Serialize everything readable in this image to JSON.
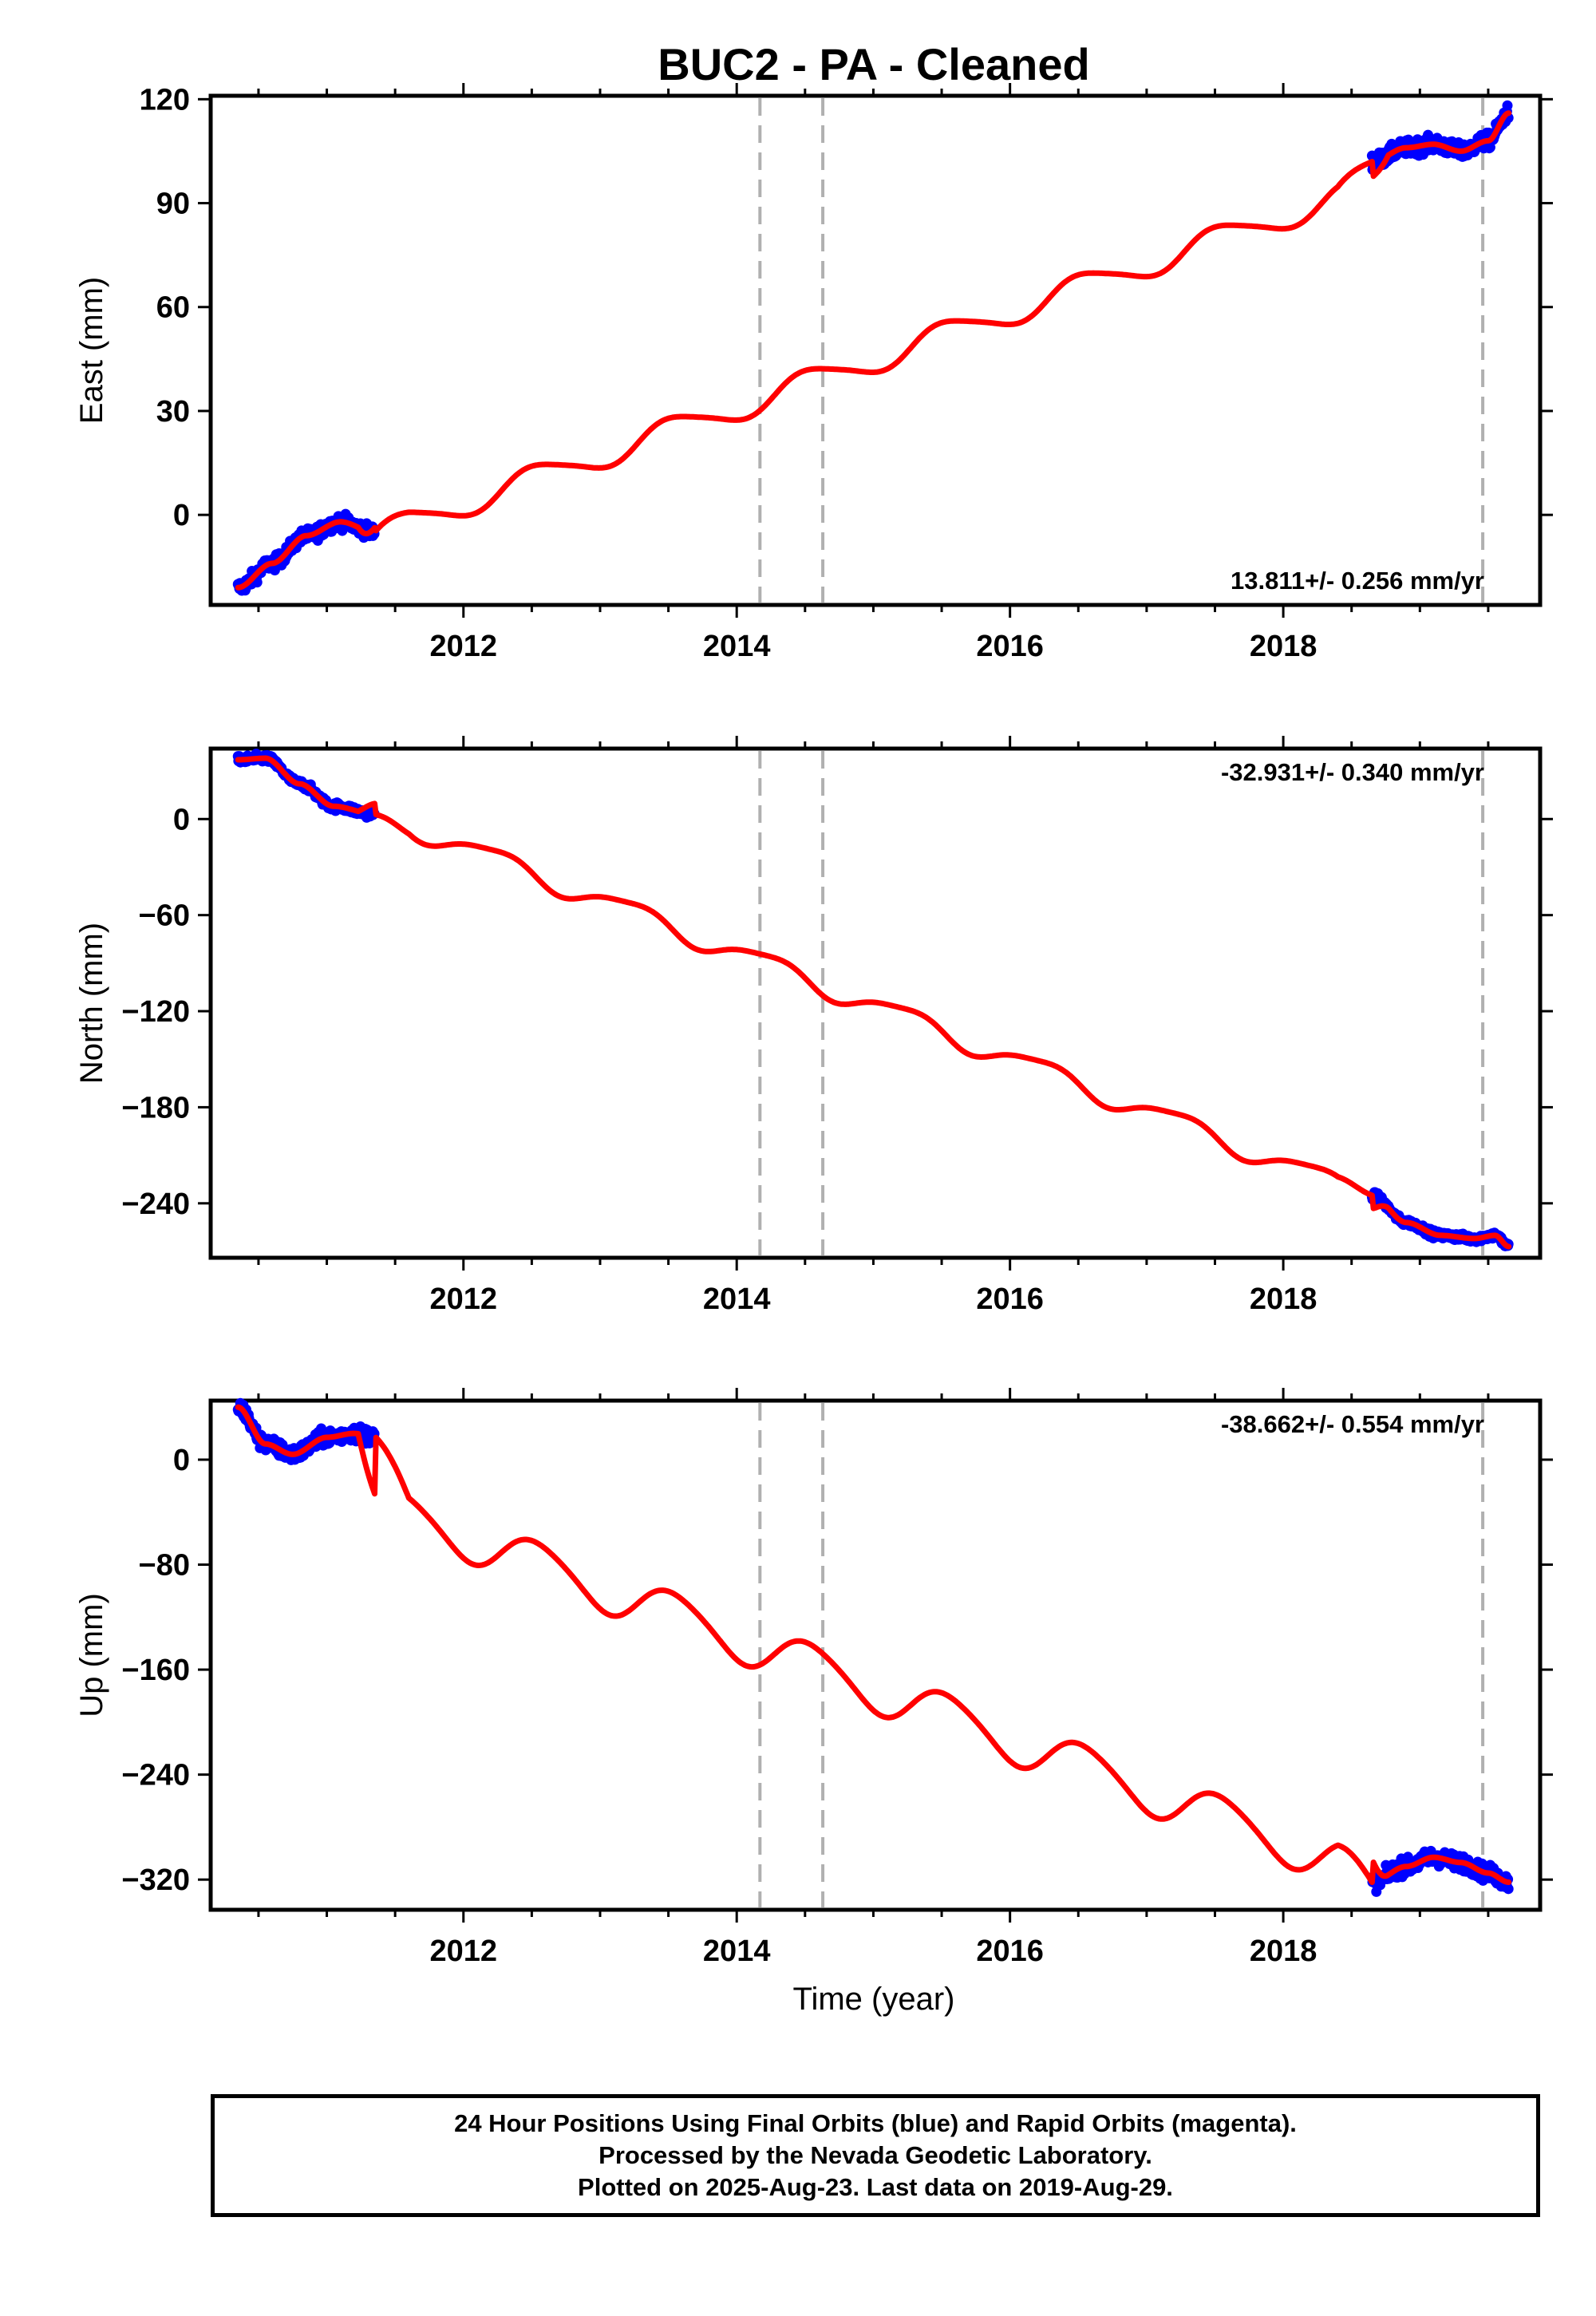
{
  "title": "BUC2  - PA - Cleaned",
  "colors": {
    "model": "#ff0000",
    "final_orbits": "#0000ff",
    "reference": "#b0b0b0",
    "frame": "#000000"
  },
  "x_axis": {
    "label": "Time (year)",
    "range": [
      2010.15,
      2019.88
    ],
    "ticks": [
      "2012",
      "2014",
      "2016",
      "2018"
    ],
    "tick_values": [
      2012,
      2014,
      2016,
      2018
    ]
  },
  "reference_lines": [
    2014.17,
    2014.63,
    2019.46
  ],
  "chart_data": [
    {
      "type": "scatter",
      "name": "east",
      "ylabel": "East (mm)",
      "ylim": [
        -26,
        121
      ],
      "y_ticks": [
        "120",
        "90",
        "60",
        "30",
        "0"
      ],
      "y_tick_values": [
        120,
        90,
        60,
        30,
        0
      ],
      "rate_label": "13.811+/- 0.256 mm/yr",
      "rate_position": "bottom-right",
      "model": {
        "velocity": 13.811,
        "offset": -19.5,
        "t0": 2010.35,
        "annual_amp": 3.8,
        "annual_phase": 0.4,
        "semiannual_amp": 0.6,
        "semiannual_phase": 1.0
      },
      "observed_segments": [
        {
          "start": 2010.35,
          "end": 2011.35,
          "model_adjust": [
            2010.35,
            2011.35
          ],
          "fit_points": [
            [
              2010.35,
              -21
            ],
            [
              2010.6,
              -14
            ],
            [
              2010.85,
              -6
            ],
            [
              2011.1,
              -2
            ],
            [
              2011.35,
              -5
            ]
          ],
          "noise": 2.0
        },
        {
          "start": 2018.65,
          "end": 2019.65,
          "fit_points": [
            [
              2018.65,
              102
            ],
            [
              2018.9,
              106
            ],
            [
              2019.1,
              107
            ],
            [
              2019.3,
              105
            ],
            [
              2019.5,
              108
            ],
            [
              2019.65,
              116
            ]
          ],
          "noise": 2.2
        }
      ]
    },
    {
      "type": "scatter",
      "name": "north",
      "ylabel": "North (mm)",
      "ylim": [
        -274,
        44
      ],
      "y_ticks": [
        "0",
        "−60",
        "−120",
        "−180",
        "−240"
      ],
      "y_tick_values": [
        0,
        -60,
        -120,
        -180,
        -240
      ],
      "rate_label": "-32.931+/- 0.340 mm/yr",
      "rate_position": "top-right",
      "model": {
        "velocity": -32.931,
        "offset": 37,
        "t0": 2010.35,
        "annual_amp": 6.5,
        "annual_phase": 2.3,
        "semiannual_amp": 1.5,
        "semiannual_phase": 0.5
      },
      "observed_segments": [
        {
          "start": 2010.35,
          "end": 2011.35,
          "fit_points": [
            [
              2010.35,
              37
            ],
            [
              2010.55,
              38
            ],
            [
              2010.8,
              22
            ],
            [
              2011.05,
              8
            ],
            [
              2011.35,
              3
            ]
          ],
          "noise": 2.5
        },
        {
          "start": 2018.65,
          "end": 2019.65,
          "fit_points": [
            [
              2018.65,
              -235
            ],
            [
              2018.9,
              -252
            ],
            [
              2019.15,
              -260
            ],
            [
              2019.4,
              -262
            ],
            [
              2019.55,
              -260
            ],
            [
              2019.65,
              -267
            ]
          ],
          "noise": 2.2
        }
      ]
    },
    {
      "type": "scatter",
      "name": "up",
      "ylabel": "Up (mm)",
      "ylim": [
        -343,
        45
      ],
      "y_ticks": [
        "0",
        "−80",
        "−160",
        "−240",
        "−320"
      ],
      "y_tick_values": [
        0,
        -80,
        -160,
        -240,
        -320
      ],
      "rate_label": "-38.662+/- 0.554 mm/yr",
      "rate_position": "top-right",
      "model": {
        "velocity": -38.662,
        "offset": 5,
        "t0": 2010.35,
        "annual_amp": 17,
        "annual_phase": 0.35,
        "semiannual_amp": 2,
        "semiannual_phase": 1.2
      },
      "observed_segments": [
        {
          "start": 2010.35,
          "end": 2011.35,
          "fit_points": [
            [
              2010.35,
              40
            ],
            [
              2010.55,
              12
            ],
            [
              2010.75,
              4
            ],
            [
              2011.0,
              17
            ],
            [
              2011.2,
              20
            ],
            [
              2011.35,
              18
            ]
          ],
          "noise": 6.0
        },
        {
          "start": 2018.65,
          "end": 2019.65,
          "fit_points": [
            [
              2018.65,
              -322
            ],
            [
              2018.9,
              -310
            ],
            [
              2019.1,
              -303
            ],
            [
              2019.3,
              -307
            ],
            [
              2019.5,
              -315
            ],
            [
              2019.65,
              -322
            ]
          ],
          "noise": 6.0
        }
      ]
    }
  ],
  "footer": {
    "line1": "24 Hour Positions Using Final Orbits (blue) and Rapid Orbits (magenta).",
    "line2": "Processed by the Nevada Geodetic Laboratory.",
    "line3": "Plotted on 2025-Aug-23. Last data on 2019-Aug-29."
  }
}
